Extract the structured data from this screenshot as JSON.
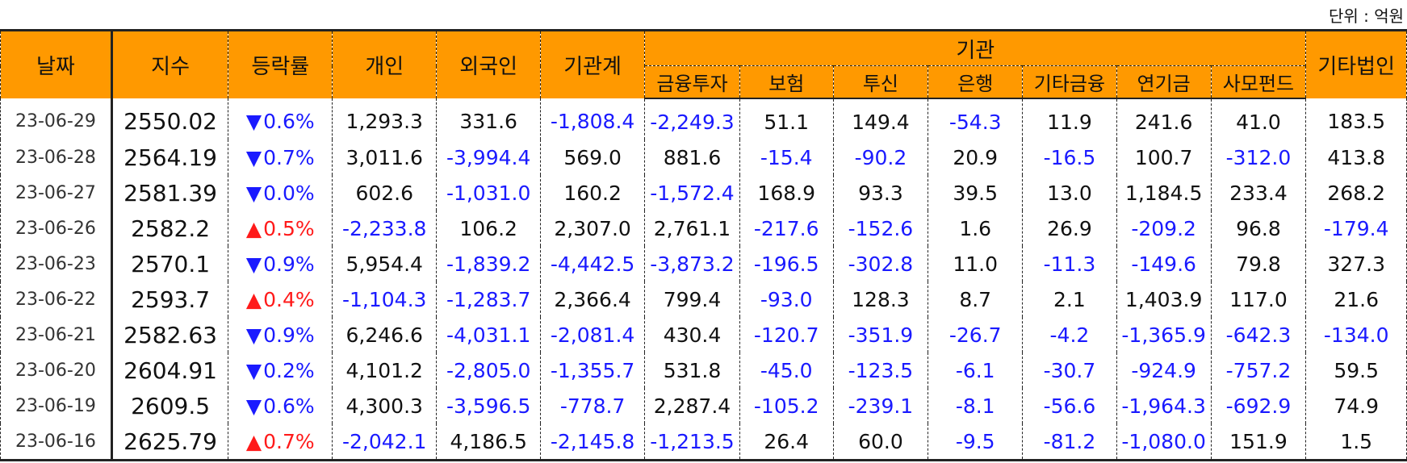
{
  "unit_label": "단위 : 억원",
  "headers": {
    "date": "날짜",
    "index": "지수",
    "change": "등락률",
    "individual": "개인",
    "foreign": "외국인",
    "institution_total": "기관계",
    "institution_group": "기관",
    "financial_investment": "금융투자",
    "insurance": "보험",
    "investment_trust": "투신",
    "bank": "은행",
    "other_finance": "기타금융",
    "pension": "연기금",
    "private_fund": "사모펀드",
    "other_corp": "기타법인"
  },
  "symbols": {
    "up": "▲",
    "down": "▼"
  },
  "rows": [
    {
      "date": "23-06-29",
      "index": "2550.02",
      "dir": "down",
      "change": "0.6%",
      "individual": "1,293.3",
      "foreign": "331.6",
      "institution_total": "-1,808.4",
      "financial_investment": "-2,249.3",
      "insurance": "51.1",
      "investment_trust": "149.4",
      "bank": "-54.3",
      "other_finance": "11.9",
      "pension": "241.6",
      "private_fund": "41.0",
      "other_corp": "183.5"
    },
    {
      "date": "23-06-28",
      "index": "2564.19",
      "dir": "down",
      "change": "0.7%",
      "individual": "3,011.6",
      "foreign": "-3,994.4",
      "institution_total": "569.0",
      "financial_investment": "881.6",
      "insurance": "-15.4",
      "investment_trust": "-90.2",
      "bank": "20.9",
      "other_finance": "-16.5",
      "pension": "100.7",
      "private_fund": "-312.0",
      "other_corp": "413.8"
    },
    {
      "date": "23-06-27",
      "index": "2581.39",
      "dir": "down",
      "change": "0.0%",
      "individual": "602.6",
      "foreign": "-1,031.0",
      "institution_total": "160.2",
      "financial_investment": "-1,572.4",
      "insurance": "168.9",
      "investment_trust": "93.3",
      "bank": "39.5",
      "other_finance": "13.0",
      "pension": "1,184.5",
      "private_fund": "233.4",
      "other_corp": "268.2"
    },
    {
      "date": "23-06-26",
      "index": "2582.2",
      "dir": "up",
      "change": "0.5%",
      "individual": "-2,233.8",
      "foreign": "106.2",
      "institution_total": "2,307.0",
      "financial_investment": "2,761.1",
      "insurance": "-217.6",
      "investment_trust": "-152.6",
      "bank": "1.6",
      "other_finance": "26.9",
      "pension": "-209.2",
      "private_fund": "96.8",
      "other_corp": "-179.4"
    },
    {
      "date": "23-06-23",
      "index": "2570.1",
      "dir": "down",
      "change": "0.9%",
      "individual": "5,954.4",
      "foreign": "-1,839.2",
      "institution_total": "-4,442.5",
      "financial_investment": "-3,873.2",
      "insurance": "-196.5",
      "investment_trust": "-302.8",
      "bank": "11.0",
      "other_finance": "-11.3",
      "pension": "-149.6",
      "private_fund": "79.8",
      "other_corp": "327.3"
    },
    {
      "date": "23-06-22",
      "index": "2593.7",
      "dir": "up",
      "change": "0.4%",
      "individual": "-1,104.3",
      "foreign": "-1,283.7",
      "institution_total": "2,366.4",
      "financial_investment": "799.4",
      "insurance": "-93.0",
      "investment_trust": "128.3",
      "bank": "8.7",
      "other_finance": "2.1",
      "pension": "1,403.9",
      "private_fund": "117.0",
      "other_corp": "21.6"
    },
    {
      "date": "23-06-21",
      "index": "2582.63",
      "dir": "down",
      "change": "0.9%",
      "individual": "6,246.6",
      "foreign": "-4,031.1",
      "institution_total": "-2,081.4",
      "financial_investment": "430.4",
      "insurance": "-120.7",
      "investment_trust": "-351.9",
      "bank": "-26.7",
      "other_finance": "-4.2",
      "pension": "-1,365.9",
      "private_fund": "-642.3",
      "other_corp": "-134.0"
    },
    {
      "date": "23-06-20",
      "index": "2604.91",
      "dir": "down",
      "change": "0.2%",
      "individual": "4,101.2",
      "foreign": "-2,805.0",
      "institution_total": "-1,355.7",
      "financial_investment": "531.8",
      "insurance": "-45.0",
      "investment_trust": "-123.5",
      "bank": "-6.1",
      "other_finance": "-30.7",
      "pension": "-924.9",
      "private_fund": "-757.2",
      "other_corp": "59.5"
    },
    {
      "date": "23-06-19",
      "index": "2609.5",
      "dir": "down",
      "change": "0.6%",
      "individual": "4,300.3",
      "foreign": "-3,596.5",
      "institution_total": "-778.7",
      "financial_investment": "2,287.4",
      "insurance": "-105.2",
      "investment_trust": "-239.1",
      "bank": "-8.1",
      "other_finance": "-56.6",
      "pension": "-1,964.3",
      "private_fund": "-692.9",
      "other_corp": "74.9"
    },
    {
      "date": "23-06-16",
      "index": "2625.79",
      "dir": "up",
      "change": "0.7%",
      "individual": "-2,042.1",
      "foreign": "4,186.5",
      "institution_total": "-2,145.8",
      "financial_investment": "-1,213.5",
      "insurance": "26.4",
      "investment_trust": "60.0",
      "bank": "-9.5",
      "other_finance": "-81.2",
      "pension": "-1,080.0",
      "private_fund": "151.9",
      "other_corp": "1.5"
    }
  ]
}
